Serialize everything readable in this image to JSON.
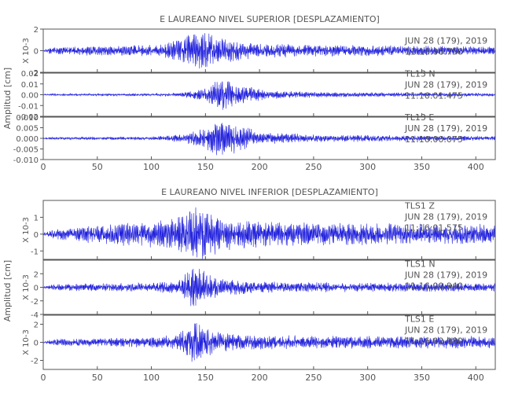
{
  "trace_color": "#1f1fdc",
  "axis_color": "#555555",
  "groups": [
    {
      "title": "E LAUREANO NIVEL SUPERIOR [DESPLAZAMIENTO]",
      "xlabel": "",
      "ylabel": "Amplitud [cm]",
      "xlim": [
        0,
        418
      ],
      "xticks": [
        0,
        50,
        100,
        150,
        200,
        250,
        300,
        350,
        400
      ],
      "xtick_labels": [
        "0",
        "50",
        "100",
        "150",
        "200",
        "250",
        "300",
        "350",
        "400"
      ],
      "panels": [
        {
          "scale_label": "X 10-3",
          "ylim": [
            -2,
            2
          ],
          "yticks": [
            -2,
            0,
            2
          ],
          "ytick_labels": [
            "-2",
            "0",
            "2"
          ],
          "station": "",
          "date": "JUN 28 (179), 2019",
          "time": "11:16:00.750",
          "envelope": [
            [
              0,
              0.05
            ],
            [
              5,
              0.3
            ],
            [
              40,
              0.45
            ],
            [
              80,
              0.5
            ],
            [
              110,
              0.6
            ],
            [
              120,
              0.9
            ],
            [
              128,
              1.2
            ],
            [
              135,
              1.6
            ],
            [
              145,
              1.8
            ],
            [
              152,
              2.0
            ],
            [
              160,
              1.4
            ],
            [
              175,
              1.0
            ],
            [
              200,
              0.7
            ],
            [
              260,
              0.55
            ],
            [
              320,
              0.5
            ],
            [
              380,
              0.45
            ],
            [
              418,
              0.4
            ]
          ]
        },
        {
          "scale_label": "",
          "ylim": [
            -0.02,
            0.02
          ],
          "yticks": [
            -0.02,
            -0.01,
            0.0,
            0.01,
            0.02
          ],
          "ytick_labels": [
            "-0.02",
            "-0.01",
            "0.00",
            "0.01",
            "0.02"
          ],
          "station": "TL13 N",
          "date": "JUN 28 (179), 2019",
          "time": "11:16:01.475",
          "envelope": [
            [
              0,
              0.0005
            ],
            [
              5,
              0.001
            ],
            [
              100,
              0.0012
            ],
            [
              130,
              0.002
            ],
            [
              150,
              0.006
            ],
            [
              158,
              0.013
            ],
            [
              165,
              0.017
            ],
            [
              175,
              0.012
            ],
            [
              190,
              0.008
            ],
            [
              210,
              0.004
            ],
            [
              260,
              0.0025
            ],
            [
              320,
              0.002
            ],
            [
              418,
              0.0015
            ]
          ]
        },
        {
          "scale_label": "",
          "ylim": [
            -0.01,
            0.01
          ],
          "yticks": [
            -0.01,
            -0.005,
            0.0,
            0.005,
            0.01
          ],
          "ytick_labels": [
            "-0.010",
            "-0.005",
            "0.000",
            "0.005",
            "0.010"
          ],
          "station": "TL13 E",
          "date": "JUN 28 (179), 2019",
          "time": "11:16:00.075",
          "envelope": [
            [
              0,
              0.0003
            ],
            [
              5,
              0.0006
            ],
            [
              100,
              0.0008
            ],
            [
              130,
              0.002
            ],
            [
              150,
              0.005
            ],
            [
              160,
              0.0085
            ],
            [
              170,
              0.009
            ],
            [
              185,
              0.006
            ],
            [
              200,
              0.003
            ],
            [
              250,
              0.0018
            ],
            [
              320,
              0.0015
            ],
            [
              418,
              0.001
            ]
          ]
        }
      ]
    },
    {
      "title": "E LAUREANO NIVEL INFERIOR [DESPLAZAMIENTO]",
      "xlabel": "",
      "ylabel": "Amplitud [cm]",
      "xlim": [
        0,
        418
      ],
      "xticks": [
        0,
        50,
        100,
        150,
        200,
        250,
        300,
        350,
        400
      ],
      "xtick_labels": [
        "0",
        "50",
        "100",
        "150",
        "200",
        "250",
        "300",
        "350",
        "400"
      ],
      "panels": [
        {
          "scale_label": "X 10-3",
          "ylim": [
            -1.5,
            2
          ],
          "yticks": [
            -1,
            0,
            1
          ],
          "ytick_labels": [
            "-1",
            "0",
            "1"
          ],
          "station": "TLS1 Z",
          "date": "JUN 28 (179), 2019",
          "time": "11:16:01.575",
          "envelope": [
            [
              0,
              0.05
            ],
            [
              10,
              0.3
            ],
            [
              50,
              0.6
            ],
            [
              100,
              0.8
            ],
            [
              120,
              1.0
            ],
            [
              130,
              1.4
            ],
            [
              140,
              1.8
            ],
            [
              150,
              1.6
            ],
            [
              165,
              1.0
            ],
            [
              200,
              0.8
            ],
            [
              260,
              0.7
            ],
            [
              330,
              0.65
            ],
            [
              418,
              0.6
            ]
          ]
        },
        {
          "scale_label": "X 10-3",
          "ylim": [
            -4,
            4
          ],
          "yticks": [
            -4,
            -2,
            0,
            2
          ],
          "ytick_labels": [
            "-4",
            "-2",
            "0",
            "2"
          ],
          "station": "TLS1 N",
          "date": "JUN 28 (179), 2019",
          "time": "11:16:00.940",
          "envelope": [
            [
              0,
              0.1
            ],
            [
              10,
              0.5
            ],
            [
              100,
              0.7
            ],
            [
              125,
              1.0
            ],
            [
              132,
              2.5
            ],
            [
              138,
              3.6
            ],
            [
              145,
              2.8
            ],
            [
              155,
              1.8
            ],
            [
              170,
              1.2
            ],
            [
              220,
              0.8
            ],
            [
              300,
              0.7
            ],
            [
              418,
              0.6
            ]
          ]
        },
        {
          "scale_label": "X 10-3",
          "ylim": [
            -3,
            3
          ],
          "yticks": [
            -2,
            0,
            2
          ],
          "ytick_labels": [
            "-2",
            "0",
            "2"
          ],
          "station": "TLS1 E",
          "date": "JUN 28 (179), 2019",
          "time": "11:16:02.080",
          "envelope": [
            [
              0,
              0.1
            ],
            [
              10,
              0.4
            ],
            [
              100,
              0.6
            ],
            [
              125,
              0.9
            ],
            [
              132,
              2.0
            ],
            [
              138,
              2.6
            ],
            [
              145,
              2.0
            ],
            [
              160,
              1.2
            ],
            [
              200,
              0.8
            ],
            [
              300,
              0.7
            ],
            [
              418,
              0.7
            ]
          ]
        }
      ]
    }
  ],
  "chart_data": [
    {
      "type": "line",
      "title": "E LAUREANO NIVEL SUPERIOR [DESPLAZAMIENTO]",
      "xlabel": "",
      "ylabel": "Amplitud [cm]",
      "xlim": [
        0,
        418
      ],
      "x_ticks": [
        0,
        50,
        100,
        150,
        200,
        250,
        300,
        350,
        400
      ],
      "series": [
        {
          "name": "",
          "ylim": [
            -2,
            2
          ],
          "unit_multiplier": "X 10-3",
          "peak_amplitude": 2.0,
          "peak_time": 152,
          "start_time": "11:16:00.750"
        },
        {
          "name": "TL13 N",
          "ylim": [
            -0.02,
            0.02
          ],
          "peak_amplitude": 0.017,
          "peak_time": 165,
          "start_time": "11:16:01.475"
        },
        {
          "name": "TL13 E",
          "ylim": [
            -0.01,
            0.01
          ],
          "peak_amplitude": 0.009,
          "peak_time": 170,
          "start_time": "11:16:00.075"
        }
      ]
    },
    {
      "type": "line",
      "title": "E LAUREANO NIVEL INFERIOR [DESPLAZAMIENTO]",
      "xlabel": "",
      "ylabel": "Amplitud [cm]",
      "xlim": [
        0,
        418
      ],
      "x_ticks": [
        0,
        50,
        100,
        150,
        200,
        250,
        300,
        350,
        400
      ],
      "series": [
        {
          "name": "TLS1 Z",
          "ylim": [
            -1.5,
            2
          ],
          "unit_multiplier": "X 10-3",
          "peak_amplitude": 1.8,
          "peak_time": 140,
          "start_time": "11:16:01.575"
        },
        {
          "name": "TLS1 N",
          "ylim": [
            -4,
            4
          ],
          "unit_multiplier": "X 10-3",
          "peak_amplitude": 3.6,
          "peak_time": 138,
          "start_time": "11:16:00.940"
        },
        {
          "name": "TLS1 E",
          "ylim": [
            -3,
            3
          ],
          "unit_multiplier": "X 10-3",
          "peak_amplitude": 2.6,
          "peak_time": 138,
          "start_time": "11:16:02.080"
        }
      ]
    }
  ]
}
